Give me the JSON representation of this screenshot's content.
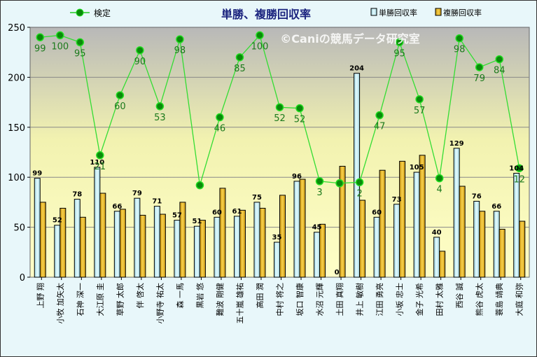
{
  "chart_data": {
    "type": "bar",
    "title": "単勝、複勝回収率",
    "watermark": "©Caniの競馬データ研究室",
    "ylim": [
      0,
      250
    ],
    "yticks": [
      0,
      50,
      100,
      150,
      200,
      250
    ],
    "ylabel": "",
    "xlabel": "",
    "legend": {
      "placement": "top",
      "entries": [
        "検定",
        "単勝回収率",
        "複勝回収率"
      ]
    },
    "categories": [
      "上野 翔",
      "小牧 加矢太",
      "石神 深一",
      "大江原 圭",
      "草野 太郎",
      "伴 啓太",
      "小野寺 祐太",
      "森 一馬",
      "黒岩 悠",
      "難波 剛健",
      "五十嵐 雄祐",
      "高田 潤",
      "中村 将之",
      "坂口 智康",
      "水沼 元輝",
      "土田 真翔",
      "井上 敏樹",
      "江田 勇亮",
      "小坂 忠士",
      "金子 光希",
      "田村 太雅",
      "西谷 誠",
      "熊谷 虎太",
      "蓑島 靖典",
      "大庭 和弥"
    ],
    "series": [
      {
        "name": "単勝回収率",
        "type": "bar",
        "color": "#c4eef2",
        "values": [
          99,
          52,
          78,
          110,
          66,
          79,
          71,
          57,
          51,
          60,
          61,
          75,
          35,
          96,
          45,
          0,
          204,
          60,
          73,
          105,
          40,
          129,
          76,
          66,
          104
        ]
      },
      {
        "name": "複勝回収率",
        "type": "bar",
        "color": "#e6b41a",
        "values": [
          75,
          69,
          60,
          84,
          68,
          62,
          63,
          75,
          57,
          89,
          67,
          69,
          82,
          98,
          53,
          111,
          77,
          107,
          116,
          122,
          26,
          91,
          66,
          48,
          56
        ]
      },
      {
        "name": "検定",
        "type": "line",
        "color": "#22cc22",
        "values": [
          240,
          242,
          235,
          122,
          182,
          227,
          171,
          238,
          92,
          160,
          220,
          242,
          170,
          169,
          96,
          94,
          95,
          162,
          235,
          178,
          99,
          239,
          210,
          218,
          109
        ],
        "labels": [
          "99",
          "100",
          "95",
          "21",
          "60",
          "90",
          "53",
          "98",
          "",
          "46",
          "85",
          "100",
          "52",
          "52",
          "3",
          "",
          "2",
          "47",
          "95",
          "57",
          "4",
          "98",
          "79",
          "84",
          "12"
        ]
      }
    ],
    "grid": true
  }
}
